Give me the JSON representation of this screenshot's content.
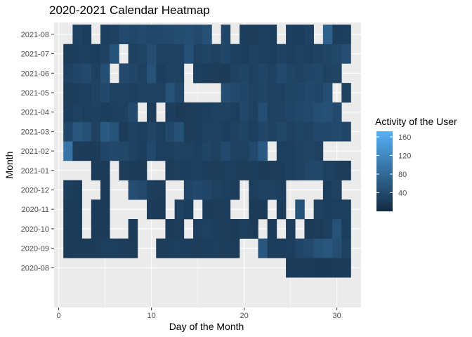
{
  "chart_data": {
    "type": "heatmap",
    "title": "2020-2021 Calendar Heatmap",
    "xlabel": "Day of the Month",
    "ylabel": "Month",
    "x_ticks": [
      0,
      10,
      20,
      30
    ],
    "xlim": [
      -0.5,
      32.6
    ],
    "months": [
      "2020-08",
      "2020-09",
      "2020-10",
      "2020-11",
      "2020-12",
      "2021-01",
      "2021-02",
      "2021-03",
      "2021-04",
      "2021-05",
      "2021-06",
      "2021-07",
      "2021-08"
    ],
    "legend": {
      "title": "Activity of the User",
      "ticks": [
        40,
        80,
        120,
        160
      ],
      "range": [
        0,
        172
      ],
      "low_color": "#132B43",
      "high_color": "#56B1F7"
    },
    "grid": true,
    "background": "#EBEBEB",
    "rows": [
      {
        "month": "2020-08",
        "days": [
          [
            25,
            20
          ],
          [
            26,
            20
          ],
          [
            27,
            19
          ],
          [
            28,
            18
          ],
          [
            29,
            19
          ],
          [
            30,
            20
          ],
          [
            31,
            21
          ]
        ]
      },
      {
        "month": "2020-09",
        "days": [
          [
            1,
            20
          ],
          [
            2,
            20
          ],
          [
            3,
            21
          ],
          [
            4,
            22
          ],
          [
            5,
            25
          ],
          [
            6,
            26
          ],
          [
            7,
            24
          ],
          [
            8,
            22
          ],
          [
            11,
            22
          ],
          [
            12,
            24
          ],
          [
            13,
            25
          ],
          [
            14,
            23
          ],
          [
            15,
            22
          ],
          [
            16,
            24
          ],
          [
            17,
            25
          ],
          [
            18,
            24
          ],
          [
            19,
            22
          ],
          [
            22,
            55
          ],
          [
            23,
            24
          ],
          [
            24,
            23
          ],
          [
            25,
            25
          ],
          [
            26,
            35
          ],
          [
            27,
            40
          ],
          [
            28,
            50
          ],
          [
            29,
            55
          ],
          [
            30,
            45
          ],
          [
            31,
            30
          ]
        ]
      },
      {
        "month": "2020-10",
        "days": [
          [
            1,
            20
          ],
          [
            2,
            20
          ],
          [
            4,
            22
          ],
          [
            5,
            20
          ],
          [
            8,
            21
          ],
          [
            12,
            20
          ],
          [
            13,
            22
          ],
          [
            15,
            25
          ],
          [
            16,
            28
          ],
          [
            17,
            24
          ],
          [
            18,
            22
          ],
          [
            19,
            21
          ],
          [
            20,
            25
          ],
          [
            21,
            22
          ],
          [
            23,
            20
          ],
          [
            25,
            22
          ],
          [
            27,
            20
          ],
          [
            28,
            22
          ],
          [
            29,
            25
          ],
          [
            30,
            50
          ],
          [
            31,
            23
          ]
        ]
      },
      {
        "month": "2020-11",
        "days": [
          [
            1,
            20
          ],
          [
            2,
            20
          ],
          [
            4,
            20
          ],
          [
            5,
            20
          ],
          [
            10,
            22
          ],
          [
            11,
            20
          ],
          [
            13,
            28
          ],
          [
            14,
            24
          ],
          [
            16,
            20
          ],
          [
            17,
            22
          ],
          [
            18,
            24
          ],
          [
            21,
            20
          ],
          [
            22,
            20
          ],
          [
            24,
            22
          ],
          [
            26,
            50
          ],
          [
            28,
            28
          ],
          [
            29,
            24
          ],
          [
            30,
            25
          ],
          [
            31,
            26
          ]
        ]
      },
      {
        "month": "2020-12",
        "days": [
          [
            1,
            26
          ],
          [
            2,
            20
          ],
          [
            5,
            20
          ],
          [
            8,
            45
          ],
          [
            9,
            40
          ],
          [
            10,
            25
          ],
          [
            11,
            22
          ],
          [
            14,
            35
          ],
          [
            15,
            38
          ],
          [
            16,
            35
          ],
          [
            17,
            28
          ],
          [
            18,
            25
          ],
          [
            19,
            22
          ],
          [
            21,
            25
          ],
          [
            22,
            30
          ],
          [
            23,
            28
          ],
          [
            24,
            25
          ],
          [
            29,
            24
          ],
          [
            30,
            28
          ]
        ]
      },
      {
        "month": "2021-01",
        "days": [
          [
            4,
            22
          ],
          [
            5,
            20
          ],
          [
            7,
            22
          ],
          [
            8,
            20
          ],
          [
            9,
            21
          ],
          [
            12,
            22
          ],
          [
            13,
            25
          ],
          [
            14,
            24
          ],
          [
            15,
            26
          ],
          [
            16,
            24
          ],
          [
            17,
            22
          ],
          [
            18,
            26
          ],
          [
            19,
            25
          ],
          [
            20,
            22
          ],
          [
            21,
            24
          ],
          [
            22,
            20
          ],
          [
            23,
            22
          ],
          [
            24,
            24
          ],
          [
            25,
            26
          ],
          [
            26,
            30
          ],
          [
            27,
            35
          ],
          [
            28,
            36
          ],
          [
            29,
            28
          ],
          [
            30,
            25
          ],
          [
            31,
            22
          ]
        ]
      },
      {
        "month": "2021-02",
        "days": [
          [
            1,
            95
          ],
          [
            2,
            22
          ],
          [
            3,
            20
          ],
          [
            4,
            22
          ],
          [
            5,
            35
          ],
          [
            6,
            38
          ],
          [
            7,
            36
          ],
          [
            8,
            30
          ],
          [
            9,
            24
          ],
          [
            10,
            38
          ],
          [
            11,
            25
          ],
          [
            12,
            26
          ],
          [
            13,
            30
          ],
          [
            14,
            28
          ],
          [
            15,
            26
          ],
          [
            16,
            32
          ],
          [
            17,
            28
          ],
          [
            18,
            40
          ],
          [
            19,
            30
          ],
          [
            20,
            28
          ],
          [
            21,
            38
          ],
          [
            22,
            60
          ],
          [
            24,
            25
          ],
          [
            25,
            26
          ],
          [
            26,
            30
          ],
          [
            27,
            32
          ],
          [
            28,
            28
          ]
        ]
      },
      {
        "month": "2021-03",
        "days": [
          [
            1,
            35
          ],
          [
            2,
            55
          ],
          [
            3,
            48
          ],
          [
            4,
            30
          ],
          [
            5,
            60
          ],
          [
            6,
            50
          ],
          [
            7,
            22
          ],
          [
            8,
            28
          ],
          [
            9,
            26
          ],
          [
            10,
            32
          ],
          [
            11,
            26
          ],
          [
            12,
            38
          ],
          [
            13,
            50
          ],
          [
            14,
            22
          ],
          [
            15,
            24
          ],
          [
            16,
            28
          ],
          [
            17,
            30
          ],
          [
            18,
            24
          ],
          [
            19,
            30
          ],
          [
            20,
            32
          ],
          [
            21,
            26
          ],
          [
            22,
            35
          ],
          [
            23,
            30
          ],
          [
            24,
            36
          ],
          [
            25,
            28
          ],
          [
            26,
            32
          ],
          [
            27,
            30
          ],
          [
            28,
            38
          ],
          [
            29,
            36
          ],
          [
            30,
            40
          ],
          [
            31,
            35
          ]
        ]
      },
      {
        "month": "2021-04",
        "days": [
          [
            1,
            24
          ],
          [
            2,
            28
          ],
          [
            3,
            26
          ],
          [
            4,
            28
          ],
          [
            5,
            24
          ],
          [
            6,
            26
          ],
          [
            7,
            28
          ],
          [
            8,
            40
          ],
          [
            10,
            22
          ],
          [
            12,
            24
          ],
          [
            13,
            20
          ],
          [
            14,
            22
          ],
          [
            15,
            24
          ],
          [
            16,
            26
          ],
          [
            17,
            28
          ],
          [
            18,
            30
          ],
          [
            19,
            26
          ],
          [
            20,
            36
          ],
          [
            21,
            28
          ],
          [
            22,
            45
          ],
          [
            23,
            28
          ],
          [
            24,
            30
          ],
          [
            25,
            34
          ],
          [
            26,
            36
          ],
          [
            27,
            40
          ],
          [
            28,
            45
          ],
          [
            29,
            48
          ],
          [
            30,
            40
          ]
        ]
      },
      {
        "month": "2021-05",
        "days": [
          [
            1,
            22
          ],
          [
            2,
            24
          ],
          [
            3,
            26
          ],
          [
            4,
            30
          ],
          [
            5,
            38
          ],
          [
            6,
            28
          ],
          [
            7,
            30
          ],
          [
            8,
            26
          ],
          [
            9,
            28
          ],
          [
            10,
            30
          ],
          [
            11,
            28
          ],
          [
            12,
            50
          ],
          [
            13,
            35
          ],
          [
            18,
            45
          ],
          [
            19,
            40
          ],
          [
            20,
            35
          ],
          [
            21,
            30
          ],
          [
            22,
            32
          ],
          [
            23,
            28
          ],
          [
            24,
            30
          ],
          [
            25,
            32
          ],
          [
            26,
            34
          ],
          [
            27,
            38
          ],
          [
            28,
            35
          ],
          [
            29,
            45
          ],
          [
            31,
            30
          ]
        ]
      },
      {
        "month": "2021-06",
        "days": [
          [
            1,
            30
          ],
          [
            2,
            35
          ],
          [
            3,
            40
          ],
          [
            4,
            28
          ],
          [
            5,
            45
          ],
          [
            7,
            40
          ],
          [
            8,
            35
          ],
          [
            9,
            28
          ],
          [
            10,
            50
          ],
          [
            11,
            24
          ],
          [
            12,
            30
          ],
          [
            13,
            28
          ],
          [
            15,
            26
          ],
          [
            16,
            24
          ],
          [
            17,
            22
          ],
          [
            18,
            20
          ],
          [
            19,
            30
          ],
          [
            20,
            32
          ],
          [
            21,
            28
          ],
          [
            22,
            34
          ],
          [
            23,
            30
          ],
          [
            24,
            40
          ],
          [
            25,
            32
          ],
          [
            26,
            30
          ],
          [
            27,
            34
          ],
          [
            28,
            36
          ],
          [
            29,
            30
          ],
          [
            30,
            32
          ]
        ]
      },
      {
        "month": "2021-07",
        "days": [
          [
            1,
            22
          ],
          [
            2,
            24
          ],
          [
            3,
            26
          ],
          [
            4,
            24
          ],
          [
            5,
            30
          ],
          [
            6,
            50
          ],
          [
            8,
            28
          ],
          [
            9,
            32
          ],
          [
            10,
            45
          ],
          [
            11,
            30
          ],
          [
            12,
            28
          ],
          [
            13,
            30
          ],
          [
            14,
            48
          ],
          [
            15,
            30
          ],
          [
            16,
            32
          ],
          [
            17,
            28
          ],
          [
            18,
            35
          ],
          [
            19,
            26
          ],
          [
            20,
            24
          ],
          [
            21,
            28
          ],
          [
            22,
            26
          ],
          [
            23,
            24
          ],
          [
            24,
            30
          ],
          [
            25,
            26
          ],
          [
            26,
            28
          ],
          [
            27,
            26
          ],
          [
            28,
            30
          ],
          [
            29,
            32
          ],
          [
            30,
            36
          ],
          [
            31,
            45
          ]
        ]
      },
      {
        "month": "2021-08",
        "days": [
          [
            2,
            28
          ],
          [
            3,
            24
          ],
          [
            5,
            26
          ],
          [
            6,
            30
          ],
          [
            7,
            40
          ],
          [
            8,
            36
          ],
          [
            9,
            40
          ],
          [
            10,
            35
          ],
          [
            11,
            38
          ],
          [
            12,
            40
          ],
          [
            13,
            42
          ],
          [
            14,
            45
          ],
          [
            15,
            40
          ],
          [
            16,
            48
          ],
          [
            18,
            35
          ],
          [
            20,
            24
          ],
          [
            21,
            22
          ],
          [
            22,
            26
          ],
          [
            23,
            24
          ],
          [
            25,
            26
          ],
          [
            26,
            24
          ],
          [
            27,
            30
          ],
          [
            29,
            70
          ],
          [
            30,
            24
          ],
          [
            31,
            26
          ]
        ]
      }
    ]
  }
}
